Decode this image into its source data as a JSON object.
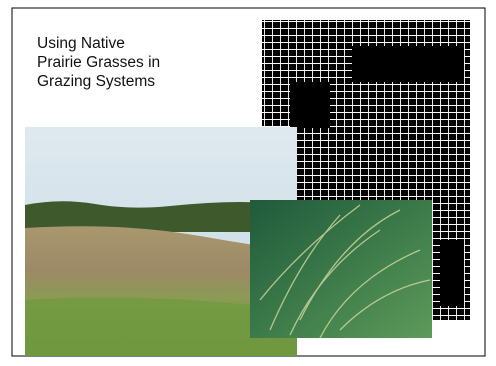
{
  "title": {
    "lines": [
      "Using Native",
      "Prairie Grasses in",
      "Grazing Systems"
    ]
  }
}
